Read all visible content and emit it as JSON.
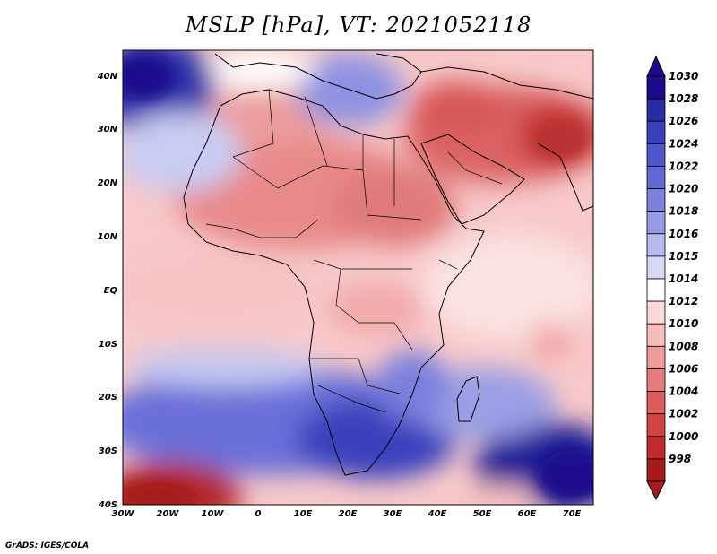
{
  "title": "MSLP [hPa], VT: 2021052118",
  "credit": "GrADS: IGES/COLA",
  "lon_labels": [
    "30W",
    "20W",
    "10W",
    "0",
    "10E",
    "20E",
    "30E",
    "40E",
    "50E",
    "60E",
    "70E"
  ],
  "lat_labels": [
    "40N",
    "30N",
    "20N",
    "10N",
    "EQ",
    "10S",
    "20S",
    "30S",
    "40S"
  ],
  "colorbar": {
    "levels": [
      "1030",
      "1028",
      "1026",
      "1024",
      "1022",
      "1020",
      "1018",
      "1016",
      "1015",
      "1014",
      "1012",
      "1010",
      "1008",
      "1006",
      "1004",
      "1002",
      "1000",
      "998"
    ],
    "colors": [
      "#1c0b8c",
      "#2a2ba6",
      "#3a3fbf",
      "#4e56cc",
      "#6269d6",
      "#7b81dd",
      "#979be6",
      "#b6b9ee",
      "#d6d8f6",
      "#ffffff",
      "#fbd9d9",
      "#f6bcbc",
      "#ef9b9b",
      "#e67b7b",
      "#dc5c5c",
      "#d14444",
      "#bf2a2a",
      "#a51a1a"
    ],
    "max_color": "#1c0b8c",
    "min_color": "#a51a1a"
  }
}
